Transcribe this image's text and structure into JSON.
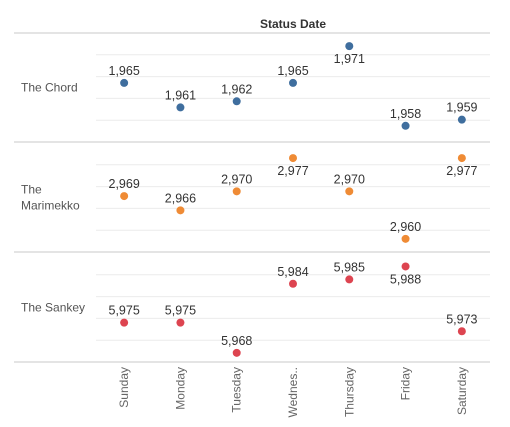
{
  "chart_data": {
    "type": "scatter",
    "column_title": "Status Date",
    "categories": [
      "Sunday",
      "Monday",
      "Tuesday",
      "Wednes..",
      "Thursday",
      "Friday",
      "Saturday"
    ],
    "series": [
      {
        "name": "The Chord",
        "label_lines": [
          "The Chord"
        ],
        "color": "#3f6e9e",
        "values": [
          1965,
          1961,
          1962,
          1965,
          1971,
          1958,
          1959
        ],
        "labels": [
          "1,965",
          "1,961",
          "1,962",
          "1,965",
          "1,971",
          "1,958",
          "1,959"
        ],
        "ylim": [
          1956.5,
          1972
        ]
      },
      {
        "name": "The Marimekko",
        "label_lines": [
          "The",
          "Marimekko"
        ],
        "color": "#ef8b35",
        "values": [
          2969,
          2966,
          2970,
          2977,
          2970,
          2960,
          2977
        ],
        "labels": [
          "2,969",
          "2,966",
          "2,970",
          "2,977",
          "2,970",
          "2,960",
          "2,977"
        ],
        "ylim": [
          2958.7,
          2978.7
        ]
      },
      {
        "name": "The Sankey",
        "label_lines": [
          "The Sankey"
        ],
        "color": "#dd4450",
        "values": [
          5975,
          5975,
          5968,
          5984,
          5985,
          5988,
          5973
        ],
        "labels": [
          "5,975",
          "5,975",
          "5,968",
          "5,984",
          "5,985",
          "5,988",
          "5,973"
        ],
        "ylim": [
          5967.5,
          5989.5
        ]
      }
    ],
    "grid": true,
    "legend": "none"
  }
}
